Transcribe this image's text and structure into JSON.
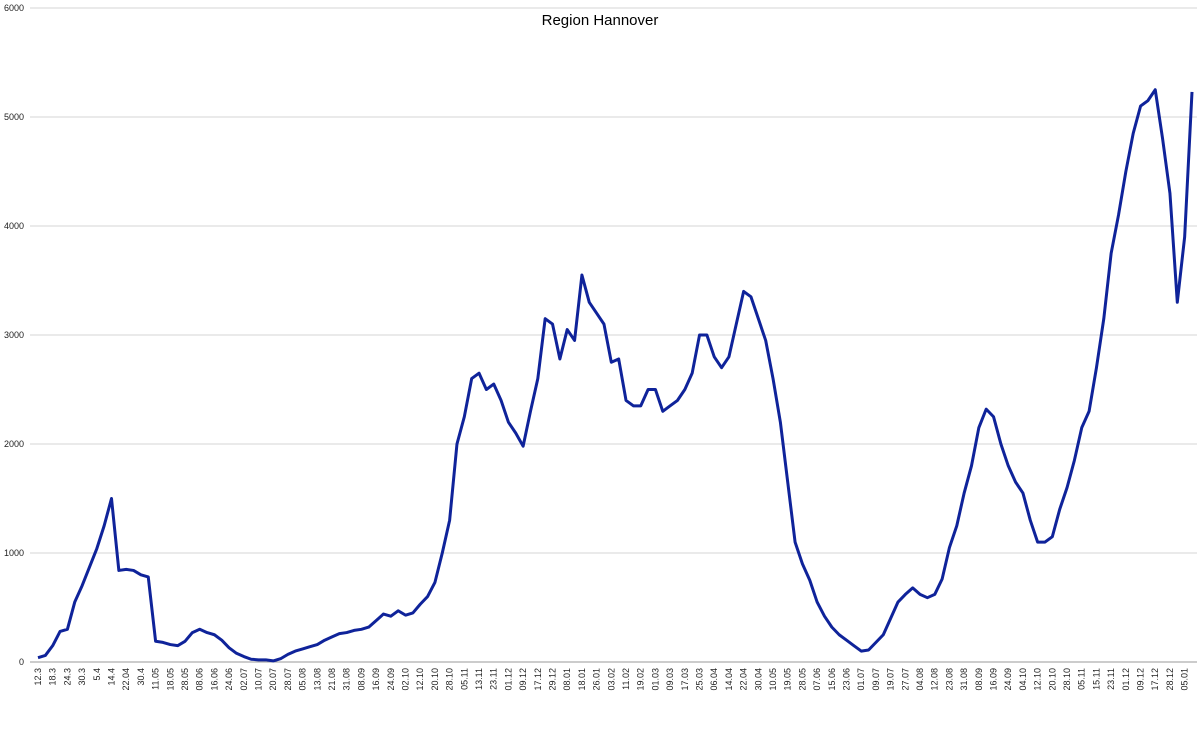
{
  "chart_data": {
    "type": "line",
    "title": "Region Hannover",
    "categories": [
      "12.3",
      null,
      "18.3",
      null,
      "24.3",
      null,
      "30.3",
      null,
      "5.4",
      null,
      "14.4",
      null,
      "22.04",
      null,
      "30.4",
      null,
      "11.05",
      null,
      "18.05",
      null,
      "28.05",
      null,
      "08.06",
      null,
      "16.06",
      null,
      "24.06",
      null,
      "02.07",
      null,
      "10.07",
      null,
      "20.07",
      null,
      "28.07",
      null,
      "05.08",
      null,
      "13.08",
      null,
      "21.08",
      null,
      "31.08",
      null,
      "08.09",
      null,
      "16.09",
      null,
      "24.09",
      null,
      "02.10",
      null,
      "12.10",
      null,
      "20.10",
      null,
      "28.10",
      null,
      "05.11",
      null,
      "13.11",
      null,
      "23.11",
      null,
      "01.12",
      null,
      "09.12",
      null,
      "17.12",
      null,
      "29.12",
      null,
      "08.01",
      null,
      "18.01",
      null,
      "26.01",
      null,
      "03.02",
      null,
      "11.02",
      null,
      "19.02",
      null,
      "01.03",
      null,
      "09.03",
      null,
      "17.03",
      null,
      "25.03",
      null,
      "06.04",
      null,
      "14.04",
      null,
      "22.04",
      null,
      "30.04",
      null,
      "10.05",
      null,
      "19.05",
      null,
      "28.05",
      null,
      "07.06",
      null,
      "15.06",
      null,
      "23.06",
      null,
      "01.07",
      null,
      "09.07",
      null,
      "19.07",
      null,
      "27.07",
      null,
      "04.08",
      null,
      "12.08",
      null,
      "23.08",
      null,
      "31.08",
      null,
      "08.09",
      null,
      "16.09",
      null,
      "24.09",
      null,
      "04.10",
      null,
      "12.10",
      null,
      "20.10",
      null,
      "28.10",
      null,
      "05.11",
      null,
      "15.11",
      null,
      "23.11",
      null,
      "01.12",
      null,
      "09.12",
      null,
      "17.12",
      null,
      "28.12",
      null,
      "05.01",
      null
    ],
    "series": [
      {
        "name": "Region Hannover",
        "color": "#0f239a",
        "values": [
          40,
          60,
          150,
          280,
          300,
          550,
          700,
          870,
          1040,
          1250,
          1500,
          840,
          850,
          840,
          800,
          780,
          190,
          180,
          160,
          150,
          190,
          270,
          300,
          270,
          250,
          200,
          130,
          80,
          50,
          25,
          20,
          20,
          10,
          30,
          70,
          100,
          120,
          140,
          160,
          200,
          230,
          260,
          270,
          290,
          300,
          320,
          380,
          440,
          420,
          470,
          430,
          450,
          530,
          600,
          730,
          1000,
          1300,
          2000,
          2250,
          2600,
          2650,
          2500,
          2550,
          2400,
          2200,
          2100,
          1980,
          2300,
          2600,
          3150,
          3100,
          2780,
          3050,
          2950,
          3550,
          3300,
          3200,
          3100,
          2750,
          2780,
          2400,
          2350,
          2350,
          2500,
          2500,
          2300,
          2350,
          2400,
          2500,
          2650,
          3000,
          3000,
          2800,
          2700,
          2800,
          3100,
          3400,
          3350,
          3150,
          2950,
          2600,
          2200,
          1650,
          1100,
          900,
          750,
          550,
          420,
          320,
          250,
          200,
          150,
          100,
          110,
          180,
          250,
          400,
          550,
          620,
          680,
          620,
          590,
          620,
          760,
          1050,
          1250,
          1550,
          1800,
          2150,
          2320,
          2250,
          2000,
          1800,
          1650,
          1550,
          1300,
          1100,
          1100,
          1150,
          1400,
          1600,
          1850,
          2150,
          2300,
          2700,
          3150,
          3750,
          4100,
          4500,
          4850,
          5100,
          5150,
          5250,
          4800,
          4300,
          3300,
          3900,
          5230
        ]
      }
    ],
    "ylim": [
      0,
      6000
    ],
    "yticks": [
      0,
      1000,
      2000,
      3000,
      4000,
      5000,
      6000
    ],
    "grid": true
  }
}
